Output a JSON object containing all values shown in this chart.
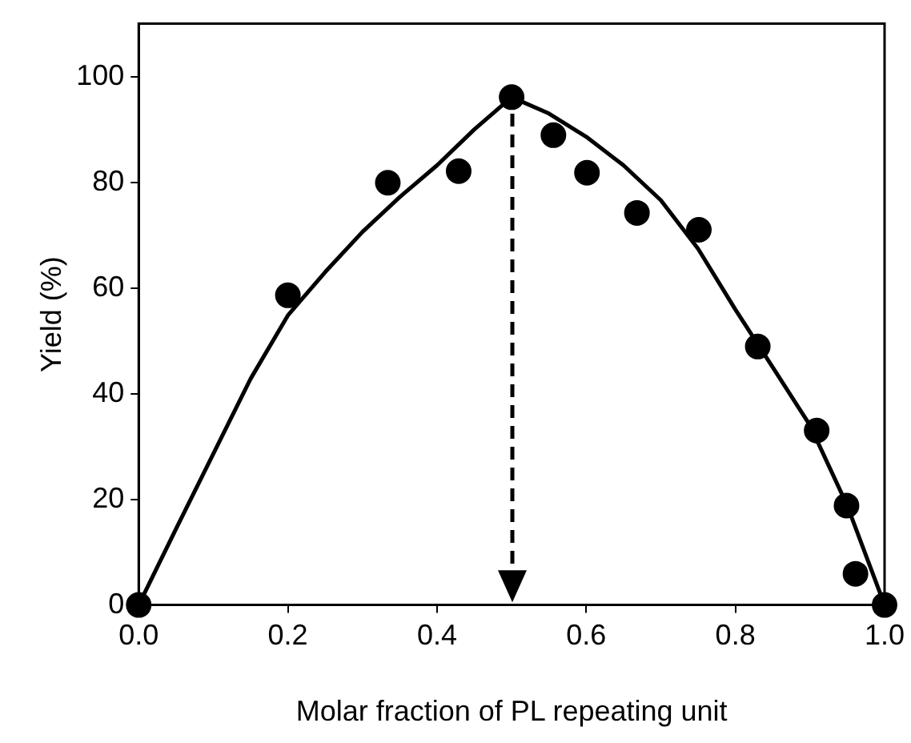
{
  "chart_data": {
    "type": "scatter",
    "xlabel": "Molar fraction of PL repeating unit",
    "ylabel": "Yield (%)",
    "xlim": [
      0,
      1
    ],
    "ylim": [
      0,
      110
    ],
    "xticks": [
      {
        "value": 0,
        "label": "0.0"
      },
      0.2,
      0.4,
      0.6,
      0.8,
      {
        "value": 1,
        "label": "1.0"
      }
    ],
    "yticks": [
      0,
      20,
      40,
      60,
      80,
      100
    ],
    "grid": false,
    "legend": false,
    "series": [
      {
        "type": "scatter",
        "color": "#000000",
        "marker": "circle",
        "x": [
          0,
          0.2,
          0.334,
          0.429,
          0.5,
          0.556,
          0.601,
          0.668,
          0.751,
          0.83,
          0.909,
          0.949,
          0.961,
          1
        ],
        "values": [
          0,
          58.6,
          79.9,
          82.1,
          96.1,
          88.9,
          81.8,
          74.2,
          71,
          48.9,
          33,
          18.8,
          5.9,
          0
        ]
      },
      {
        "type": "line",
        "color": "#000000",
        "marker": "none",
        "line_style": "solid",
        "x": [
          0,
          0.05,
          0.1,
          0.15,
          0.2,
          0.25,
          0.3,
          0.35,
          0.4,
          0.45,
          0.5,
          0.55,
          0.6,
          0.65,
          0.7,
          0.75,
          0.8,
          0.85,
          0.9,
          0.95,
          1
        ],
        "values": [
          0,
          14.4,
          28.6,
          42.8,
          54.8,
          63,
          70.6,
          77.2,
          83.2,
          90,
          96.1,
          93,
          88.6,
          83.2,
          76.6,
          67.4,
          55.9,
          45,
          34,
          18.8,
          0
        ]
      }
    ]
  }
}
